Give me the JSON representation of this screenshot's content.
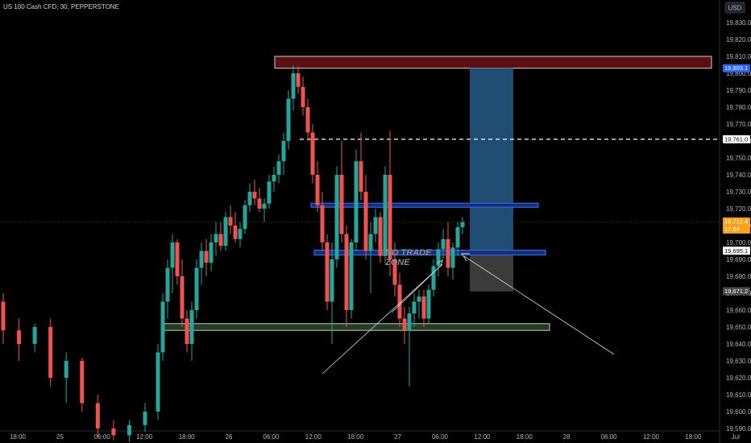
{
  "header": {
    "symbol_title": "US 100 Cash CFD, 30, PEPPERSTONE",
    "currency": "USD"
  },
  "price_tags": {
    "top_zone": "19,803.1",
    "target_line": "19,761.0",
    "last_price": "19,712.4",
    "countdown": "17:54",
    "lower_line": "19,695.1",
    "stop_level": "19,671.2"
  },
  "annotation": {
    "line1": "NO TRADE",
    "line2": "ZONE"
  },
  "colors": {
    "up": "#26a69a",
    "down": "#ef5350",
    "resistance_fill": "#5b0f12",
    "resistance_border": "#e0e0e0",
    "blue_line": "#2962ff",
    "green_zone": "#2a4a2a",
    "target_box": "#1e4a6e",
    "stop_box": "#3a3a3a"
  },
  "chart_data": {
    "type": "candlestick",
    "title": "US 100 Cash CFD, 30, PEPPERSTONE",
    "ylabel": "USD",
    "ylim": [
      19585,
      19842
    ],
    "y_ticks": [
      19590,
      19600,
      19610,
      19620,
      19630,
      19640,
      19650,
      19660,
      19670,
      19680,
      19690,
      19700,
      19710,
      19720,
      19730,
      19740,
      19750,
      19760,
      19770,
      19780,
      19790,
      19800,
      19810,
      19820,
      19830
    ],
    "x_ticks": [
      "18:00",
      "25",
      "06:00",
      "12:00",
      "18:00",
      "26",
      "06:00",
      "12:00",
      "18:00",
      "27",
      "06:00",
      "12:00",
      "18:00",
      "28",
      "06:00",
      "12:00",
      "18:00",
      "Jul"
    ],
    "candles": [
      {
        "o": 19665,
        "h": 19670,
        "l": 19640,
        "c": 19648
      },
      {
        "o": 19648,
        "h": 19655,
        "l": 19630,
        "c": 19640
      },
      {
        "o": 19640,
        "h": 19652,
        "l": 19635,
        "c": 19650
      },
      {
        "o": 19650,
        "h": 19655,
        "l": 19615,
        "c": 19620
      },
      {
        "o": 19620,
        "h": 19635,
        "l": 19605,
        "c": 19630
      },
      {
        "o": 19630,
        "h": 19632,
        "l": 19600,
        "c": 19605
      },
      {
        "o": 19605,
        "h": 19610,
        "l": 19585,
        "c": 19590
      },
      {
        "o": 19590,
        "h": 19595,
        "l": 19583,
        "c": 19586
      },
      {
        "o": 19586,
        "h": 19595,
        "l": 19582,
        "c": 19592
      },
      {
        "o": 19592,
        "h": 19605,
        "l": 19588,
        "c": 19600
      },
      {
        "o": 19600,
        "h": 19640,
        "l": 19595,
        "c": 19635
      },
      {
        "o": 19635,
        "h": 19670,
        "l": 19630,
        "c": 19665
      },
      {
        "o": 19665,
        "h": 19690,
        "l": 19655,
        "c": 19685
      },
      {
        "o": 19685,
        "h": 19705,
        "l": 19670,
        "c": 19700
      },
      {
        "o": 19700,
        "h": 19702,
        "l": 19675,
        "c": 19680
      },
      {
        "o": 19680,
        "h": 19690,
        "l": 19650,
        "c": 19655
      },
      {
        "o": 19655,
        "h": 19660,
        "l": 19635,
        "c": 19640
      },
      {
        "o": 19640,
        "h": 19665,
        "l": 19630,
        "c": 19660
      },
      {
        "o": 19660,
        "h": 19690,
        "l": 19655,
        "c": 19685
      },
      {
        "o": 19685,
        "h": 19700,
        "l": 19675,
        "c": 19695
      },
      {
        "o": 19695,
        "h": 19702,
        "l": 19680,
        "c": 19688
      },
      {
        "o": 19688,
        "h": 19705,
        "l": 19683,
        "c": 19700
      },
      {
        "o": 19700,
        "h": 19712,
        "l": 19692,
        "c": 19705
      },
      {
        "o": 19705,
        "h": 19712,
        "l": 19695,
        "c": 19698
      },
      {
        "o": 19698,
        "h": 19718,
        "l": 19695,
        "c": 19715
      },
      {
        "o": 19715,
        "h": 19722,
        "l": 19705,
        "c": 19710
      },
      {
        "o": 19710,
        "h": 19718,
        "l": 19700,
        "c": 19702
      },
      {
        "o": 19702,
        "h": 19712,
        "l": 19697,
        "c": 19708
      },
      {
        "o": 19708,
        "h": 19725,
        "l": 19705,
        "c": 19722
      },
      {
        "o": 19722,
        "h": 19735,
        "l": 19718,
        "c": 19730
      },
      {
        "o": 19730,
        "h": 19737,
        "l": 19722,
        "c": 19726
      },
      {
        "o": 19726,
        "h": 19732,
        "l": 19718,
        "c": 19720
      },
      {
        "o": 19720,
        "h": 19726,
        "l": 19712,
        "c": 19723
      },
      {
        "o": 19723,
        "h": 19740,
        "l": 19720,
        "c": 19736
      },
      {
        "o": 19736,
        "h": 19745,
        "l": 19730,
        "c": 19740
      },
      {
        "o": 19740,
        "h": 19752,
        "l": 19735,
        "c": 19748
      },
      {
        "o": 19748,
        "h": 19765,
        "l": 19740,
        "c": 19760
      },
      {
        "o": 19760,
        "h": 19790,
        "l": 19755,
        "c": 19785
      },
      {
        "o": 19785,
        "h": 19805,
        "l": 19778,
        "c": 19800
      },
      {
        "o": 19800,
        "h": 19804,
        "l": 19788,
        "c": 19792
      },
      {
        "o": 19792,
        "h": 19798,
        "l": 19775,
        "c": 19780
      },
      {
        "o": 19780,
        "h": 19785,
        "l": 19760,
        "c": 19765
      },
      {
        "o": 19765,
        "h": 19770,
        "l": 19735,
        "c": 19740
      },
      {
        "o": 19740,
        "h": 19748,
        "l": 19718,
        "c": 19722
      },
      {
        "o": 19722,
        "h": 19730,
        "l": 19695,
        "c": 19700
      },
      {
        "o": 19700,
        "h": 19705,
        "l": 19660,
        "c": 19665
      },
      {
        "o": 19665,
        "h": 19700,
        "l": 19640,
        "c": 19690
      },
      {
        "o": 19690,
        "h": 19745,
        "l": 19685,
        "c": 19740
      },
      {
        "o": 19740,
        "h": 19760,
        "l": 19700,
        "c": 19705
      },
      {
        "o": 19705,
        "h": 19710,
        "l": 19650,
        "c": 19660
      },
      {
        "o": 19660,
        "h": 19702,
        "l": 19655,
        "c": 19700
      },
      {
        "o": 19700,
        "h": 19755,
        "l": 19695,
        "c": 19748
      },
      {
        "o": 19748,
        "h": 19765,
        "l": 19725,
        "c": 19730
      },
      {
        "o": 19730,
        "h": 19740,
        "l": 19690,
        "c": 19695
      },
      {
        "o": 19695,
        "h": 19712,
        "l": 19670,
        "c": 19705
      },
      {
        "o": 19705,
        "h": 19720,
        "l": 19700,
        "c": 19715
      },
      {
        "o": 19715,
        "h": 19718,
        "l": 19688,
        "c": 19692
      },
      {
        "o": 19692,
        "h": 19745,
        "l": 19688,
        "c": 19740
      },
      {
        "o": 19740,
        "h": 19766,
        "l": 19680,
        "c": 19690
      },
      {
        "o": 19690,
        "h": 19700,
        "l": 19668,
        "c": 19675
      },
      {
        "o": 19675,
        "h": 19682,
        "l": 19650,
        "c": 19655
      },
      {
        "o": 19655,
        "h": 19662,
        "l": 19640,
        "c": 19648
      },
      {
        "o": 19648,
        "h": 19662,
        "l": 19615,
        "c": 19658
      },
      {
        "o": 19658,
        "h": 19670,
        "l": 19650,
        "c": 19665
      },
      {
        "o": 19665,
        "h": 19672,
        "l": 19655,
        "c": 19668
      },
      {
        "o": 19668,
        "h": 19672,
        "l": 19650,
        "c": 19655
      },
      {
        "o": 19655,
        "h": 19675,
        "l": 19652,
        "c": 19672
      },
      {
        "o": 19672,
        "h": 19690,
        "l": 19668,
        "c": 19686
      },
      {
        "o": 19686,
        "h": 19700,
        "l": 19680,
        "c": 19696
      },
      {
        "o": 19696,
        "h": 19708,
        "l": 19690,
        "c": 19702
      },
      {
        "o": 19702,
        "h": 19712,
        "l": 19680,
        "c": 19685
      },
      {
        "o": 19685,
        "h": 19700,
        "l": 19678,
        "c": 19697
      },
      {
        "o": 19697,
        "h": 19712,
        "l": 19692,
        "c": 19709
      },
      {
        "o": 19709,
        "h": 19715,
        "l": 19705,
        "c": 19712
      }
    ],
    "levels": [
      {
        "name": "resistance_zone",
        "from": 19803,
        "to": 19810
      },
      {
        "name": "target_line",
        "value": 19761
      },
      {
        "name": "blue_zone_upper",
        "value": 19722
      },
      {
        "name": "blue_zone_lower",
        "value": 19694
      },
      {
        "name": "support_zone",
        "from": 19648,
        "to": 19652
      }
    ],
    "position": {
      "entry": 19695,
      "target": 19803,
      "stop": 19671
    }
  }
}
